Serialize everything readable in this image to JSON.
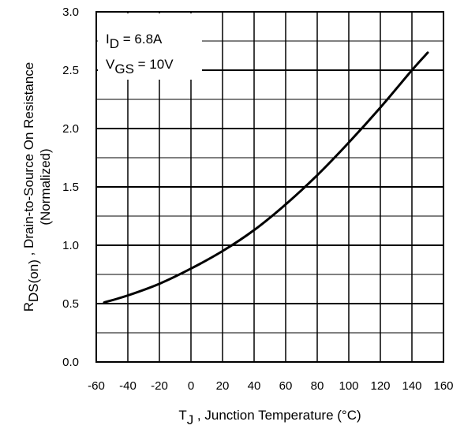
{
  "chart_data": {
    "type": "line",
    "xlim": [
      -60,
      160
    ],
    "ylim": [
      0.0,
      3.0
    ],
    "x_ticks": [
      -60,
      -40,
      -20,
      0,
      20,
      40,
      60,
      80,
      100,
      120,
      140,
      160
    ],
    "x_tick_labels": [
      "-60",
      "-40",
      "-20",
      "0",
      "20",
      "40",
      "60",
      "80",
      "100",
      "120",
      "140",
      "160"
    ],
    "y_ticks": [
      0.0,
      0.5,
      1.0,
      1.5,
      2.0,
      2.5,
      3.0
    ],
    "y_tick_labels": [
      "0.0",
      "0.5",
      "1.0",
      "1.5",
      "2.0",
      "2.5",
      "3.0"
    ],
    "x_minor_grid_step": 20,
    "y_minor_grid_step": 0.25,
    "grid": true,
    "xlabel": {
      "main": "T",
      "sub": "J",
      "rest": " , Junction Temperature (°C)"
    },
    "ylabel": {
      "line1_main": "R",
      "line1_sub": "DS(on)",
      "line1_rest": " , Drain-to-Source On Resistance",
      "line2": "(Normalized)"
    },
    "annotations": {
      "id_main": "I",
      "id_sub": "D",
      "id_rest": " = 6.8A",
      "vgs_main": "V",
      "vgs_sub": "GS",
      "vgs_rest": " = 10V"
    },
    "series": [
      {
        "x": [
          -55,
          -40,
          -20,
          0,
          20,
          40,
          60,
          80,
          100,
          120,
          140,
          150
        ],
        "values": [
          0.51,
          0.57,
          0.67,
          0.8,
          0.95,
          1.13,
          1.35,
          1.6,
          1.88,
          2.18,
          2.5,
          2.65
        ]
      }
    ]
  }
}
